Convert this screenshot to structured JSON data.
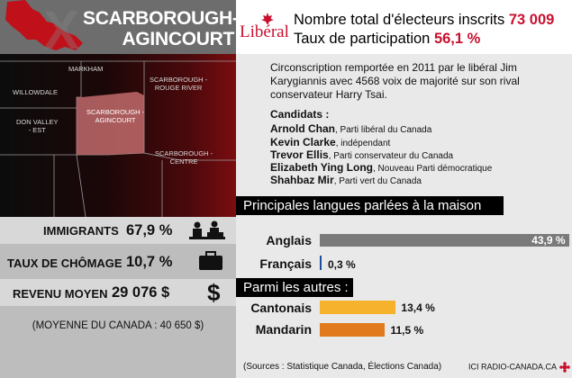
{
  "riding": {
    "line1": "SCARBOROUGH-",
    "line2": "AGINCOURT"
  },
  "party_logo": "Libéral",
  "header": {
    "voters_label": "Nombre total d'électeurs inscrits",
    "voters_value": "73 009",
    "turnout_label": "Taux de participation",
    "turnout_value": "56,1 %"
  },
  "map_labels": {
    "markham": "MARKHAM",
    "willowdale": "WILLOWDALE",
    "agincourt": [
      "SCARBOROUGH -",
      "AGINCOURT"
    ],
    "rouge": [
      "SCARBOROUGH -",
      "ROUGE RIVER"
    ],
    "donvalley": [
      "DON VALLEY",
      "- EST"
    ],
    "centre": [
      "SCARBOROUGH -",
      "CENTRE"
    ]
  },
  "description": "Circonscription remportée en 2011 par le libéral Jim Karygiannis avec 4568 voix de majorité sur son rival conservateur Harry Tsai.",
  "candidates_title": "Candidats :",
  "candidates": [
    {
      "name": "Arnold Chan",
      "party": ", Parti libéral du Canada"
    },
    {
      "name": "Kevin Clarke",
      "party": ", indépendant"
    },
    {
      "name": "Trevor Ellis",
      "party": ", Parti conservateur du Canada"
    },
    {
      "name": "Elizabeth Ying Long",
      "party": ", Nouveau Parti démocratique"
    },
    {
      "name": "Shahbaz Mir",
      "party": ", Parti vert du Canada"
    }
  ],
  "stats": [
    {
      "label": "IMMIGRANTS",
      "value": "67,9 %",
      "icon": "immigrants-icon"
    },
    {
      "label": "TAUX DE CHÔMAGE",
      "value": "10,7 %",
      "icon": "briefcase-icon"
    },
    {
      "label": "REVENU MOYEN",
      "value": "29 076 $",
      "icon": "dollar-icon"
    }
  ],
  "average_note": "(MOYENNE DU CANADA : 40 650 $)",
  "languages_title": "Principales langues parlées à la maison",
  "languages": [
    {
      "name": "Anglais",
      "value": "43,9 %",
      "pct": 43.9,
      "color": "#7a7a7a"
    },
    {
      "name": "Français",
      "value": "0,3 %",
      "pct": 0.3,
      "color": "#1f4e9c"
    }
  ],
  "others_title": "Parmi les autres :",
  "others": [
    {
      "name": "Cantonais",
      "value": "13,4 %",
      "pct": 13.4,
      "color": "#f6b12d"
    },
    {
      "name": "Mandarin",
      "value": "11,5 %",
      "pct": 11.5,
      "color": "#e07a1d"
    }
  ],
  "sources": "(Sources : Statistique Canada, Élections Canada)",
  "brand": "ICI RADIO-CANADA.CA"
}
